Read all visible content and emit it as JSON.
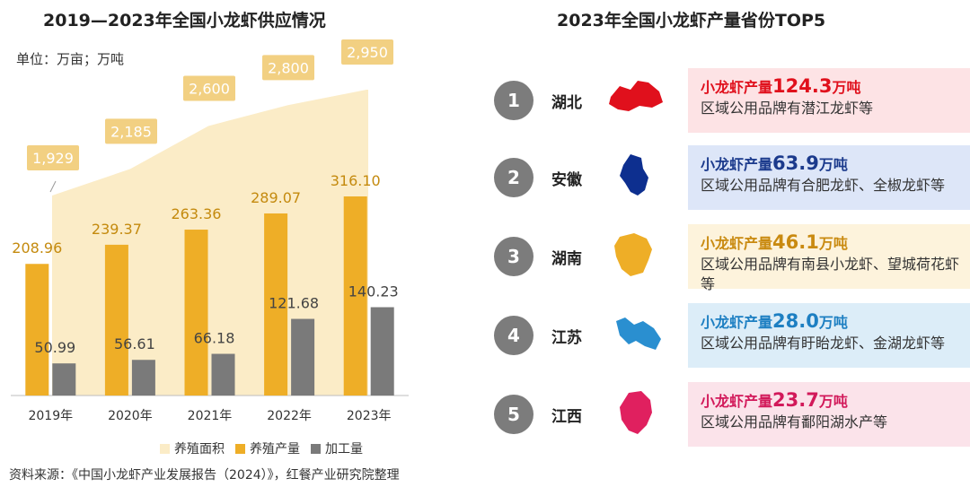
{
  "left_title": "2019—2023年全国小龙虾供应情况",
  "unit_label": "单位：万亩；万吨",
  "right_title": "2023年全国小龙虾产量省份TOP5",
  "source": "资料来源：《中国小龙虾产业发展报告（2024）》，红餐产业研究院整理",
  "chart_data": {
    "type": "bar",
    "categories": [
      "2019年",
      "2020年",
      "2021年",
      "2022年",
      "2023年"
    ],
    "series": [
      {
        "name": "养殖面积",
        "type": "area",
        "values": [
          1929,
          2185,
          2600,
          2800,
          2950
        ],
        "labels": [
          "1,929",
          "2,185",
          "2,600",
          "2,800",
          "2,950"
        ],
        "color": "#fbecc7"
      },
      {
        "name": "养殖产量",
        "type": "bar",
        "values": [
          208.96,
          239.37,
          263.36,
          289.07,
          316.1
        ],
        "labels": [
          "208.96",
          "239.37",
          "263.36",
          "289.07",
          "316.10"
        ],
        "color": "#eeae27"
      },
      {
        "name": "加工量",
        "type": "bar",
        "values": [
          50.99,
          56.61,
          66.18,
          121.68,
          140.23
        ],
        "labels": [
          "50.99",
          "56.61",
          "66.18",
          "121.68",
          "140.23"
        ],
        "color": "#7a7a7a"
      }
    ],
    "legend_position": "bottom"
  },
  "ranking": [
    {
      "rank": "1",
      "province": "湖北",
      "prefix": "小龙虾产量",
      "amount": "124.3",
      "unit": "万吨",
      "brands": "区域公用品牌有潜江龙虾等",
      "accent": "#e0101c",
      "box": "#fde3e5",
      "map_color": "#e0101c"
    },
    {
      "rank": "2",
      "province": "安徽",
      "prefix": "小龙虾产量",
      "amount": "63.9",
      "unit": "万吨",
      "brands": "区域公用品牌有合肥龙虾、全椒龙虾等",
      "accent": "#1b3a8c",
      "box": "#dde6f8",
      "map_color": "#0d2f8f"
    },
    {
      "rank": "3",
      "province": "湖南",
      "prefix": "小龙虾产量",
      "amount": "46.1",
      "unit": "万吨",
      "brands": "区域公用品牌有南县小龙虾、望城荷花虾等",
      "accent": "#c98a10",
      "box": "#fdf3dc",
      "map_color": "#eeae27"
    },
    {
      "rank": "4",
      "province": "江苏",
      "prefix": "小龙虾产量",
      "amount": "28.0",
      "unit": "万吨",
      "brands": "区域公用品牌有盱眙龙虾、金湖龙虾等",
      "accent": "#1d7fc2",
      "box": "#dcedf8",
      "map_color": "#2a8fd0"
    },
    {
      "rank": "5",
      "province": "江西",
      "prefix": "小龙虾产量",
      "amount": "23.7",
      "unit": "万吨",
      "brands": "区域公用品牌有鄱阳湖水产等",
      "accent": "#d2195a",
      "box": "#fbe3ea",
      "map_color": "#e0205f"
    }
  ]
}
